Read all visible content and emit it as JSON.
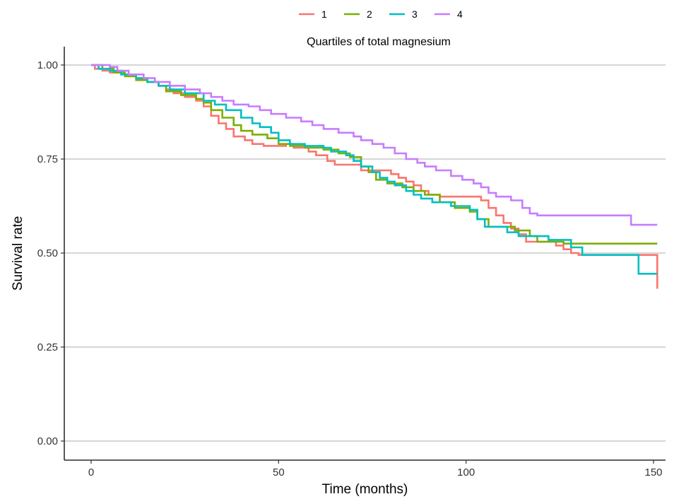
{
  "chart_data": {
    "type": "line",
    "step": true,
    "xlabel": "Time (months)",
    "ylabel": "Survival rate",
    "legend_title": "Quartiles of total magnesium",
    "legend_position": "top",
    "xlim": [
      0,
      150
    ],
    "ylim": [
      0,
      1
    ],
    "x_ticks": [
      "0",
      "50",
      "100",
      "150"
    ],
    "y_ticks": [
      "0.00",
      "0.25",
      "0.50",
      "0.75",
      "1.00"
    ],
    "grid": "horizontal major",
    "series": [
      {
        "name": "1",
        "color": "#F8766D",
        "points": [
          [
            0,
            1.0
          ],
          [
            1,
            0.99
          ],
          [
            3,
            0.985
          ],
          [
            5,
            0.98
          ],
          [
            8,
            0.975
          ],
          [
            12,
            0.965
          ],
          [
            15,
            0.955
          ],
          [
            18,
            0.945
          ],
          [
            20,
            0.935
          ],
          [
            22,
            0.925
          ],
          [
            25,
            0.915
          ],
          [
            28,
            0.905
          ],
          [
            30,
            0.89
          ],
          [
            32,
            0.865
          ],
          [
            34,
            0.845
          ],
          [
            36,
            0.83
          ],
          [
            38,
            0.81
          ],
          [
            41,
            0.8
          ],
          [
            43,
            0.79
          ],
          [
            46,
            0.785
          ],
          [
            52,
            0.79
          ],
          [
            54,
            0.78
          ],
          [
            58,
            0.77
          ],
          [
            60,
            0.76
          ],
          [
            63,
            0.745
          ],
          [
            65,
            0.735
          ],
          [
            70,
            0.735
          ],
          [
            72,
            0.72
          ],
          [
            80,
            0.71
          ],
          [
            82,
            0.7
          ],
          [
            84,
            0.69
          ],
          [
            86,
            0.68
          ],
          [
            88,
            0.665
          ],
          [
            90,
            0.655
          ],
          [
            93,
            0.65
          ],
          [
            104,
            0.64
          ],
          [
            106,
            0.62
          ],
          [
            108,
            0.6
          ],
          [
            110,
            0.58
          ],
          [
            112,
            0.565
          ],
          [
            114,
            0.55
          ],
          [
            116,
            0.53
          ],
          [
            124,
            0.52
          ],
          [
            126,
            0.51
          ],
          [
            128,
            0.5
          ],
          [
            130,
            0.495
          ],
          [
            151,
            0.405
          ]
        ]
      },
      {
        "name": "2",
        "color": "#7CAE00",
        "points": [
          [
            0,
            1.0
          ],
          [
            3,
            0.99
          ],
          [
            6,
            0.98
          ],
          [
            9,
            0.97
          ],
          [
            12,
            0.96
          ],
          [
            15,
            0.955
          ],
          [
            18,
            0.945
          ],
          [
            20,
            0.93
          ],
          [
            24,
            0.92
          ],
          [
            28,
            0.91
          ],
          [
            30,
            0.9
          ],
          [
            32,
            0.88
          ],
          [
            35,
            0.86
          ],
          [
            38,
            0.84
          ],
          [
            40,
            0.825
          ],
          [
            43,
            0.815
          ],
          [
            47,
            0.805
          ],
          [
            50,
            0.79
          ],
          [
            53,
            0.785
          ],
          [
            57,
            0.78
          ],
          [
            62,
            0.775
          ],
          [
            66,
            0.765
          ],
          [
            69,
            0.755
          ],
          [
            72,
            0.73
          ],
          [
            74,
            0.715
          ],
          [
            76,
            0.695
          ],
          [
            79,
            0.685
          ],
          [
            83,
            0.675
          ],
          [
            86,
            0.665
          ],
          [
            89,
            0.655
          ],
          [
            93,
            0.635
          ],
          [
            97,
            0.62
          ],
          [
            101,
            0.61
          ],
          [
            103,
            0.59
          ],
          [
            106,
            0.57
          ],
          [
            113,
            0.56
          ],
          [
            117,
            0.545
          ],
          [
            119,
            0.53
          ],
          [
            126,
            0.525
          ],
          [
            151,
            0.525
          ]
        ]
      },
      {
        "name": "3",
        "color": "#00BFC4",
        "points": [
          [
            0,
            1.0
          ],
          [
            2,
            0.99
          ],
          [
            5,
            0.985
          ],
          [
            8,
            0.975
          ],
          [
            12,
            0.965
          ],
          [
            15,
            0.955
          ],
          [
            18,
            0.945
          ],
          [
            21,
            0.935
          ],
          [
            25,
            0.925
          ],
          [
            30,
            0.905
          ],
          [
            33,
            0.895
          ],
          [
            36,
            0.88
          ],
          [
            40,
            0.86
          ],
          [
            43,
            0.845
          ],
          [
            45,
            0.835
          ],
          [
            48,
            0.82
          ],
          [
            50,
            0.8
          ],
          [
            53,
            0.79
          ],
          [
            57,
            0.785
          ],
          [
            62,
            0.78
          ],
          [
            64,
            0.77
          ],
          [
            68,
            0.76
          ],
          [
            70,
            0.745
          ],
          [
            72,
            0.73
          ],
          [
            75,
            0.715
          ],
          [
            77,
            0.7
          ],
          [
            79,
            0.69
          ],
          [
            81,
            0.68
          ],
          [
            84,
            0.665
          ],
          [
            86,
            0.655
          ],
          [
            88,
            0.645
          ],
          [
            91,
            0.635
          ],
          [
            96,
            0.625
          ],
          [
            101,
            0.615
          ],
          [
            103,
            0.59
          ],
          [
            105,
            0.57
          ],
          [
            111,
            0.555
          ],
          [
            114,
            0.545
          ],
          [
            122,
            0.535
          ],
          [
            128,
            0.515
          ],
          [
            131,
            0.495
          ],
          [
            146,
            0.445
          ],
          [
            151,
            0.445
          ]
        ]
      },
      {
        "name": "4",
        "color": "#C77CFF",
        "points": [
          [
            0,
            1.0
          ],
          [
            5,
            0.995
          ],
          [
            7,
            0.985
          ],
          [
            10,
            0.975
          ],
          [
            14,
            0.965
          ],
          [
            17,
            0.955
          ],
          [
            21,
            0.945
          ],
          [
            25,
            0.935
          ],
          [
            29,
            0.925
          ],
          [
            32,
            0.915
          ],
          [
            35,
            0.905
          ],
          [
            38,
            0.895
          ],
          [
            42,
            0.89
          ],
          [
            45,
            0.88
          ],
          [
            48,
            0.87
          ],
          [
            52,
            0.86
          ],
          [
            56,
            0.85
          ],
          [
            59,
            0.84
          ],
          [
            62,
            0.83
          ],
          [
            66,
            0.82
          ],
          [
            70,
            0.81
          ],
          [
            72,
            0.8
          ],
          [
            75,
            0.79
          ],
          [
            78,
            0.78
          ],
          [
            81,
            0.765
          ],
          [
            84,
            0.75
          ],
          [
            87,
            0.74
          ],
          [
            89,
            0.73
          ],
          [
            92,
            0.72
          ],
          [
            96,
            0.705
          ],
          [
            99,
            0.695
          ],
          [
            102,
            0.685
          ],
          [
            104,
            0.675
          ],
          [
            106,
            0.66
          ],
          [
            108,
            0.65
          ],
          [
            112,
            0.64
          ],
          [
            115,
            0.62
          ],
          [
            117,
            0.605
          ],
          [
            119,
            0.6
          ],
          [
            135,
            0.6
          ],
          [
            144,
            0.575
          ],
          [
            151,
            0.575
          ]
        ]
      }
    ]
  }
}
